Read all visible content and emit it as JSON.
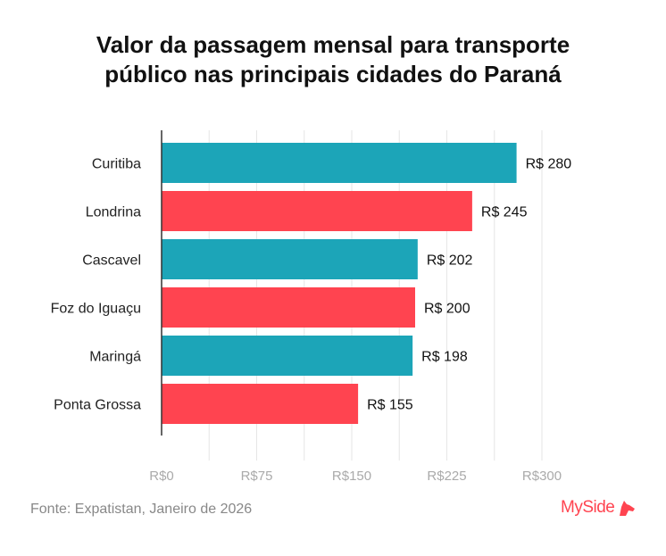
{
  "title_line1": "Valor da passagem mensal para transporte",
  "title_line2": "público nas principais cidades do Paraná",
  "source": "Fonte: Expatistan, Janeiro de 2026",
  "logo": "MySide",
  "chart_data": {
    "type": "bar",
    "orientation": "horizontal",
    "title": "Valor da passagem mensal para transporte público nas principais cidades do Paraná",
    "categories": [
      "Curitiba",
      "Londrina",
      "Cascavel",
      "Foz do Iguaçu",
      "Maringá",
      "Ponta Grossa"
    ],
    "values": [
      280,
      245,
      202,
      200,
      198,
      155
    ],
    "data_labels": [
      "R$ 280",
      "R$ 245",
      "R$ 202",
      "R$ 200",
      "R$ 198",
      "R$ 155"
    ],
    "colors": [
      "#1ca5b8",
      "#ff4450",
      "#1ca5b8",
      "#ff4450",
      "#1ca5b8",
      "#ff4450"
    ],
    "xlim": [
      0,
      300
    ],
    "xticks": [
      0,
      75,
      150,
      225,
      300
    ],
    "xtick_labels": [
      "R$0",
      "R$75",
      "R$150",
      "R$225",
      "R$300"
    ],
    "grid": "vertical, every 37.5",
    "xlabel": "",
    "ylabel": ""
  }
}
